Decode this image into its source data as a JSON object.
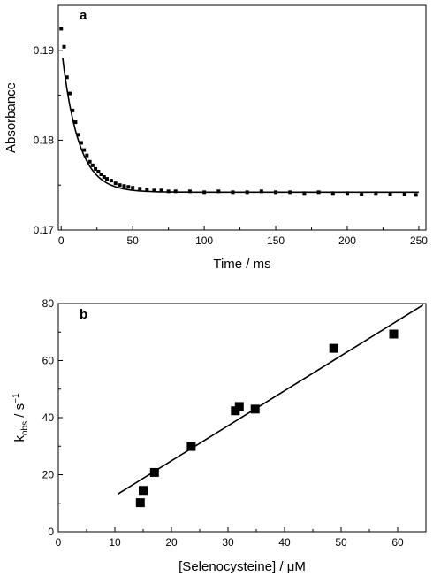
{
  "chart_data": [
    {
      "type": "scatter",
      "panel_label": "a",
      "xlabel": "Time / ms",
      "ylabel": "Absorbance",
      "xlim": [
        -2,
        255
      ],
      "ylim": [
        0.17,
        0.195
      ],
      "xticks": [
        0,
        50,
        100,
        150,
        200,
        250
      ],
      "xtick_labels": [
        "0",
        "50",
        "100",
        "150",
        "200",
        "250"
      ],
      "yticks": [
        0.17,
        0.18,
        0.19
      ],
      "ytick_labels": [
        "0.17",
        "0.18",
        "0.19"
      ],
      "grid": false,
      "fit": {
        "type": "exponential",
        "a": 0.1742,
        "b": 0.0163,
        "k": 0.0864
      },
      "series": [
        {
          "marker": "square",
          "x": [
            0,
            2,
            4,
            6,
            8,
            10,
            12,
            14,
            16,
            18,
            20,
            22,
            24,
            26,
            28,
            30,
            32,
            35,
            38,
            41,
            44,
            47,
            50,
            55,
            60,
            65,
            70,
            75,
            80,
            90,
            100,
            110,
            120,
            130,
            140,
            150,
            160,
            170,
            180,
            190,
            200,
            210,
            220,
            230,
            240,
            248
          ],
          "y": [
            0.1924,
            0.1904,
            0.187,
            0.1852,
            0.1833,
            0.182,
            0.1806,
            0.1797,
            0.1789,
            0.1783,
            0.1776,
            0.1772,
            0.1768,
            0.1765,
            0.1762,
            0.1759,
            0.1757,
            0.1755,
            0.1752,
            0.175,
            0.1749,
            0.1748,
            0.1747,
            0.1746,
            0.1745,
            0.1744,
            0.1744,
            0.1743,
            0.1743,
            0.1743,
            0.1742,
            0.1743,
            0.1742,
            0.1742,
            0.1743,
            0.1742,
            0.1742,
            0.1741,
            0.1742,
            0.1741,
            0.1741,
            0.174,
            0.1741,
            0.174,
            0.174,
            0.1739
          ]
        }
      ]
    },
    {
      "type": "scatter",
      "panel_label": "b",
      "xlabel": "[Selenocysteine] / μM",
      "ylabel_main": "k",
      "ylabel_sub": "obs",
      "ylabel_rest": " / s",
      "ylabel_sup": "−1",
      "xlim": [
        0,
        65
      ],
      "ylim": [
        0,
        80
      ],
      "xticks": [
        0,
        10,
        20,
        30,
        40,
        50,
        60
      ],
      "xtick_labels": [
        "0",
        "10",
        "20",
        "30",
        "40",
        "50",
        "60"
      ],
      "yticks": [
        0,
        20,
        40,
        60,
        80
      ],
      "ytick_labels": [
        "0",
        "20",
        "40",
        "60",
        "80"
      ],
      "grid": false,
      "fit": {
        "type": "linear",
        "x0": 10.5,
        "y0": 13.2,
        "x1": 64.5,
        "y1": 79.5
      },
      "series": [
        {
          "marker": "square",
          "x": [
            14.5,
            15.0,
            17.0,
            23.5,
            31.3,
            32.0,
            34.8,
            48.7,
            59.3
          ],
          "y": [
            10.2,
            14.5,
            20.8,
            29.9,
            42.4,
            43.9,
            43.0,
            64.3,
            69.3
          ]
        }
      ]
    }
  ]
}
